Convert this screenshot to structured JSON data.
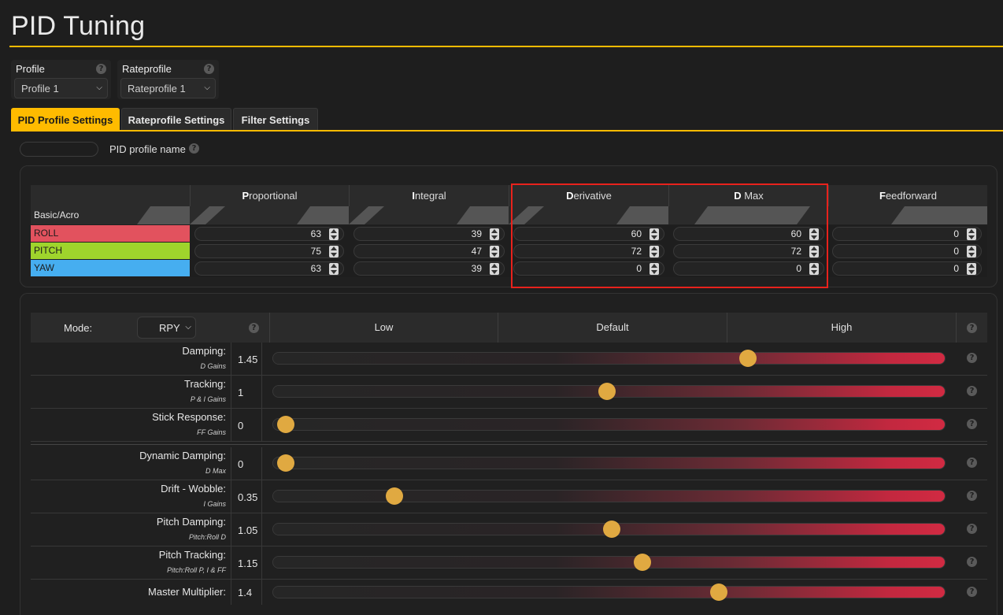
{
  "page": {
    "title": "PID Tuning"
  },
  "profile": {
    "label": "Profile",
    "selected": "Profile 1"
  },
  "rateprofile": {
    "label": "Rateprofile",
    "selected": "Rateprofile 1"
  },
  "tabs": [
    {
      "label": "PID Profile Settings",
      "active": true
    },
    {
      "label": "Rateprofile Settings",
      "active": false
    },
    {
      "label": "Filter Settings",
      "active": false
    }
  ],
  "pid_profile_name": {
    "label": "PID profile name",
    "value": ""
  },
  "pid_table": {
    "section_label": "Basic/Acro",
    "columns": [
      {
        "initial": "P",
        "rest": "roportional"
      },
      {
        "initial": "I",
        "rest": "ntegral"
      },
      {
        "initial": "D",
        "rest": "erivative"
      },
      {
        "initial": "D",
        "rest": " Max"
      },
      {
        "initial": "F",
        "rest": "eedforward"
      }
    ],
    "rows": [
      {
        "axis": "ROLL",
        "color": "#e2525e",
        "text_color": "#1c1c1c",
        "values": [
          "63",
          "39",
          "60",
          "60",
          "0"
        ]
      },
      {
        "axis": "PITCH",
        "color": "#9fd42c",
        "text_color": "#1c1c1c",
        "values": [
          "75",
          "47",
          "72",
          "72",
          "0"
        ]
      },
      {
        "axis": "YAW",
        "color": "#46aef0",
        "text_color": "#1c1c1c",
        "values": [
          "63",
          "39",
          "0",
          "0",
          "0"
        ]
      }
    ]
  },
  "tuning": {
    "mode_label": "Mode:",
    "mode_value": "RPY",
    "header": {
      "low": "Low",
      "default": "Default",
      "high": "High"
    },
    "sliders": [
      {
        "name": "Damping:",
        "sub": "D Gains",
        "value": "1.45",
        "level": 0.713
      },
      {
        "name": "Tracking:",
        "sub": "P & I Gains",
        "value": "1",
        "level": 0.495
      },
      {
        "name": "Stick Response:",
        "sub": "FF Gains",
        "value": "0",
        "level": 0.0
      },
      {
        "name": "Dynamic Damping:",
        "sub": "D Max",
        "value": "0",
        "level": 0.0
      },
      {
        "name": "Drift - Wobble:",
        "sub": "I Gains",
        "value": "0.35",
        "level": 0.168
      },
      {
        "name": "Pitch Damping:",
        "sub": "Pitch:Roll D",
        "value": "1.05",
        "level": 0.503
      },
      {
        "name": "Pitch Tracking:",
        "sub": "Pitch:Roll P, I & FF",
        "value": "1.15",
        "level": 0.55
      },
      {
        "name": "Master Multiplier:",
        "sub": "",
        "value": "1.4",
        "level": 0.668
      }
    ]
  }
}
